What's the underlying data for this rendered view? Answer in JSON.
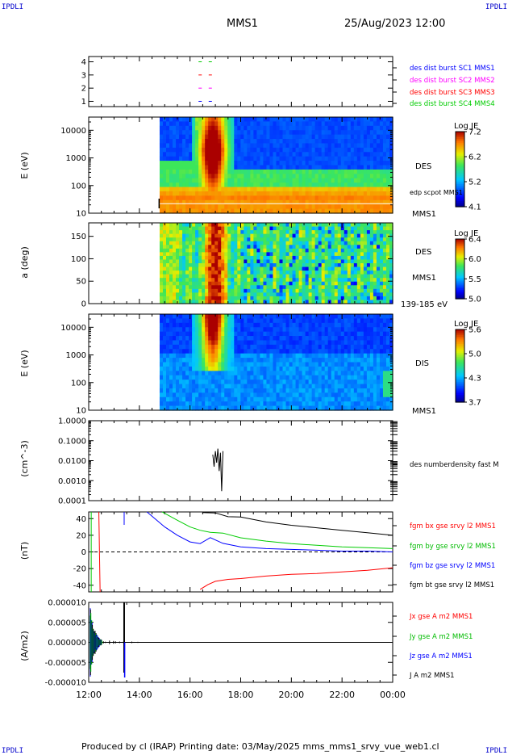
{
  "header": {
    "logo_left": "IPDLI",
    "logo_right": "IPDLI",
    "spacecraft": "MMS1",
    "date": "25/Aug/2023 12:00"
  },
  "footer": {
    "text": "Produced by cl (IRAP)   Printing date: 03/May/2025   mms_mms1_srvy_vue_web1.cl",
    "logo_left": "IPDLI",
    "logo_right": "IPDLI"
  },
  "time_axis": {
    "ticks": [
      "12:00",
      "14:00",
      "16:00",
      "18:00",
      "20:00",
      "22:00",
      "00:00"
    ],
    "hour_range": [
      12,
      24
    ]
  },
  "chart_data": [
    {
      "type": "scatter",
      "id": "burst",
      "yticks": [
        "1",
        "2",
        "3",
        "4"
      ],
      "ylim": [
        0.6,
        4.4
      ],
      "series": [
        {
          "name": "des dist burst SC1 MMS1",
          "color": "#0000ff",
          "points": [
            [
              16.4,
              1.0
            ],
            [
              16.8,
              1.0
            ]
          ]
        },
        {
          "name": "des dist burst SC2 MMS2",
          "color": "#ff00ff",
          "points": [
            [
              16.4,
              2.0
            ],
            [
              16.8,
              2.0
            ]
          ]
        },
        {
          "name": "des dist burst SC3 MMS3",
          "color": "#ff0000",
          "points": [
            [
              16.4,
              3.0
            ],
            [
              16.8,
              3.0
            ]
          ]
        },
        {
          "name": "des dist burst SC4 MMS4",
          "color": "#00cc00",
          "points": [
            [
              16.4,
              4.0
            ],
            [
              16.8,
              4.0
            ]
          ]
        }
      ]
    },
    {
      "type": "heatmap",
      "id": "des_energy",
      "ylabel": "E (eV)",
      "yticks": [
        "10",
        "100",
        "1000",
        "10000"
      ],
      "yscale": "log",
      "ylim": [
        10,
        30000
      ],
      "data_start_hour": 14.8,
      "right_labels": [
        "DES",
        "edp scpot MMS1",
        "MMS1"
      ],
      "colorbar": {
        "title": "Log JE",
        "ticks": [
          "7.2",
          "6.2",
          "5.2",
          "4.1"
        ]
      }
    },
    {
      "type": "heatmap",
      "id": "des_pitch",
      "ylabel": "a (deg)",
      "yticks": [
        "0",
        "50",
        "100",
        "150"
      ],
      "ylim": [
        0,
        180
      ],
      "data_start_hour": 14.8,
      "right_labels": [
        "DES",
        "MMS1",
        "139-185 eV"
      ],
      "colorbar": {
        "title": "Log JE",
        "ticks": [
          "6.4",
          "6.0",
          "5.5",
          "5.0"
        ]
      }
    },
    {
      "type": "heatmap",
      "id": "dis_energy",
      "ylabel": "E (eV)",
      "yticks": [
        "10",
        "100",
        "1000",
        "10000"
      ],
      "yscale": "log",
      "ylim": [
        10,
        30000
      ],
      "data_start_hour": 14.8,
      "right_labels": [
        "DIS",
        "MMS1"
      ],
      "colorbar": {
        "title": "Log JE",
        "ticks": [
          "5.6",
          "5.0",
          "4.3",
          "3.7"
        ]
      }
    },
    {
      "type": "line",
      "id": "density",
      "ylabel": "(cm^-3)",
      "yticks": [
        "0.0001",
        "0.0010",
        "0.0100",
        "0.1000",
        "1.0000"
      ],
      "yscale": "log",
      "ylim": [
        0.0001,
        1
      ],
      "series": [
        {
          "name": "des numberdensity fast M",
          "color": "#000000",
          "x": [
            16.9,
            16.95,
            17.0,
            17.05,
            17.1,
            17.15,
            17.2,
            17.25,
            17.3
          ],
          "y": [
            0.02,
            0.005,
            0.03,
            0.008,
            0.04,
            0.003,
            0.025,
            0.0003,
            0.03
          ]
        }
      ]
    },
    {
      "type": "line",
      "id": "magfield",
      "ylabel": "(nT)",
      "yticks": [
        "-40",
        "-20",
        "0",
        "20",
        "40"
      ],
      "ylim": [
        -48,
        48
      ],
      "series": [
        {
          "name": "fgm bx gse srvy l2 MMS1",
          "color": "#ff0000",
          "x": [
            16.4,
            16.7,
            17.0,
            17.5,
            18.0,
            19.0,
            20.0,
            21.0,
            22.0,
            23.0,
            24.0
          ],
          "y": [
            -45,
            -38,
            -37,
            -34,
            -32,
            -29,
            -27,
            -26,
            -24,
            -22,
            -19
          ]
        },
        {
          "name": "fgm by gse srvy l2 MMS1",
          "color": "#00cc00",
          "x": [
            14.9,
            15.5,
            16.0,
            16.4,
            16.8,
            17.3,
            18.0,
            19.0,
            20.0,
            21.0,
            22.0,
            23.0,
            24.0
          ],
          "y": [
            48,
            38,
            30,
            26,
            25,
            21,
            17,
            13,
            10,
            8,
            6,
            5,
            4
          ]
        },
        {
          "name": "fgm bz gse srvy l2 MMS1",
          "color": "#0000ff",
          "x": [
            14.3,
            15.0,
            15.5,
            16.0,
            16.4,
            16.8,
            17.3,
            18.0,
            19.0,
            20.0,
            21.0,
            22.0,
            23.0,
            24.0
          ],
          "y": [
            48,
            30,
            20,
            12,
            10,
            16,
            10,
            6,
            4,
            3,
            2,
            1,
            1,
            0
          ]
        },
        {
          "name": "fgm bt gse srvy l2 MMS1",
          "color": "#000000",
          "x": [
            16.5,
            17.0,
            17.5,
            18.0,
            19.0,
            20.0,
            21.0,
            22.0,
            23.0,
            24.0
          ],
          "y": [
            48,
            46,
            44,
            42,
            36,
            32,
            29,
            26,
            23,
            20
          ]
        }
      ]
    },
    {
      "type": "line",
      "id": "current",
      "ylabel": "(A/m2)",
      "yticks": [
        "-0.000010",
        "-0.000005",
        "0.000000",
        "0.000005",
        "0.000010"
      ],
      "ylim": [
        -1e-05,
        1e-05
      ],
      "series": [
        {
          "name": "Jx gse A m2 MMS1",
          "color": "#ff0000"
        },
        {
          "name": "Jy gse A m2 MMS1",
          "color": "#00cc00"
        },
        {
          "name": "Jz gse A m2 MMS1",
          "color": "#0000ff"
        },
        {
          "name": "J A m2 MMS1",
          "color": "#000000"
        }
      ]
    }
  ]
}
